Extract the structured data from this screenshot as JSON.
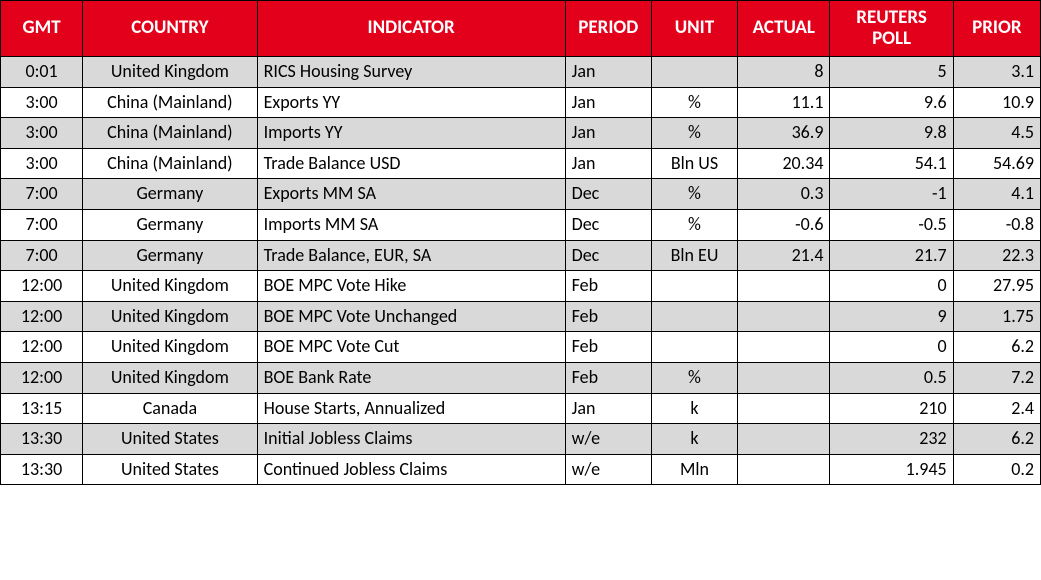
{
  "table": {
    "header_bg": "#e3001b",
    "header_fg": "#ffffff",
    "alt_row_bg": "#d9d9d9",
    "row_bg": "#ffffff",
    "border_color": "#000000",
    "columns": [
      {
        "key": "gmt",
        "label": "GMT",
        "align": "center"
      },
      {
        "key": "country",
        "label": "COUNTRY",
        "align": "center"
      },
      {
        "key": "indicator",
        "label": "INDICATOR",
        "align": "left"
      },
      {
        "key": "period",
        "label": "PERIOD",
        "align": "left"
      },
      {
        "key": "unit",
        "label": "UNIT",
        "align": "center"
      },
      {
        "key": "actual",
        "label": "ACTUAL",
        "align": "right"
      },
      {
        "key": "poll",
        "label": "REUTERS POLL",
        "align": "right"
      },
      {
        "key": "prior",
        "label": "PRIOR",
        "align": "right"
      }
    ],
    "rows": [
      {
        "gmt": "0:01",
        "country": "United Kingdom",
        "indicator": "RICS Housing Survey",
        "period": "Jan",
        "unit": "",
        "actual": "8",
        "poll": "5",
        "prior": "3.1"
      },
      {
        "gmt": "3:00",
        "country": "China (Mainland)",
        "indicator": "Exports YY",
        "period": "Jan",
        "unit": "%",
        "actual": "11.1",
        "poll": "9.6",
        "prior": "10.9"
      },
      {
        "gmt": "3:00",
        "country": "China (Mainland)",
        "indicator": "Imports YY",
        "period": "Jan",
        "unit": "%",
        "actual": "36.9",
        "poll": "9.8",
        "prior": "4.5"
      },
      {
        "gmt": "3:00",
        "country": "China (Mainland)",
        "indicator": "Trade Balance USD",
        "period": "Jan",
        "unit": "Bln US",
        "actual": "20.34",
        "poll": "54.1",
        "prior": "54.69"
      },
      {
        "gmt": "7:00",
        "country": "Germany",
        "indicator": "Exports MM SA",
        "period": "Dec",
        "unit": "%",
        "actual": "0.3",
        "poll": "-1",
        "prior": "4.1"
      },
      {
        "gmt": "7:00",
        "country": "Germany",
        "indicator": "Imports MM SA",
        "period": "Dec",
        "unit": "%",
        "actual": "-0.6",
        "poll": "-0.5",
        "prior": "-0.8"
      },
      {
        "gmt": "7:00",
        "country": "Germany",
        "indicator": "Trade Balance, EUR, SA",
        "period": "Dec",
        "unit": "Bln EU",
        "actual": "21.4",
        "poll": "21.7",
        "prior": "22.3"
      },
      {
        "gmt": "12:00",
        "country": "United Kingdom",
        "indicator": "BOE MPC Vote Hike",
        "period": "Feb",
        "unit": "",
        "actual": "",
        "poll": "0",
        "prior": "27.95"
      },
      {
        "gmt": "12:00",
        "country": "United Kingdom",
        "indicator": "BOE MPC Vote Unchanged",
        "period": "Feb",
        "unit": "",
        "actual": "",
        "poll": "9",
        "prior": "1.75"
      },
      {
        "gmt": "12:00",
        "country": "United Kingdom",
        "indicator": "BOE MPC Vote Cut",
        "period": "Feb",
        "unit": "",
        "actual": "",
        "poll": "0",
        "prior": "6.2"
      },
      {
        "gmt": "12:00",
        "country": "United Kingdom",
        "indicator": "BOE Bank Rate",
        "period": "Feb",
        "unit": "%",
        "actual": "",
        "poll": "0.5",
        "prior": "7.2"
      },
      {
        "gmt": "13:15",
        "country": "Canada",
        "indicator": "House Starts, Annualized",
        "period": "Jan",
        "unit": "k",
        "actual": "",
        "poll": "210",
        "prior": "2.4"
      },
      {
        "gmt": "13:30",
        "country": "United States",
        "indicator": "Initial Jobless Claims",
        "period": "w/e",
        "unit": "k",
        "actual": "",
        "poll": "232",
        "prior": "6.2"
      },
      {
        "gmt": "13:30",
        "country": "United States",
        "indicator": "Continued Jobless Claims",
        "period": "w/e",
        "unit": "Mln",
        "actual": "",
        "poll": "1.945",
        "prior": "0.2"
      }
    ]
  }
}
